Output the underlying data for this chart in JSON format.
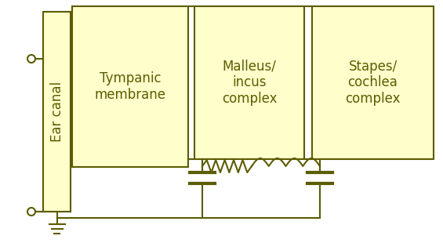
{
  "bg_color": "#ffffff",
  "box_fill": "#ffffcc",
  "box_edge": "#5c5c00",
  "line_color": "#5c5c00",
  "line_width": 1.5,
  "ear_canal_label": "Ear canal",
  "tympanic_label": "Tympanic\nmembrane",
  "malleus_label": "Malleus/\nincus\ncomplex",
  "stapes_label": "Stapes/\ncochlea\ncomplex",
  "label_color": "#5c5c00",
  "label_fontsize": 12
}
